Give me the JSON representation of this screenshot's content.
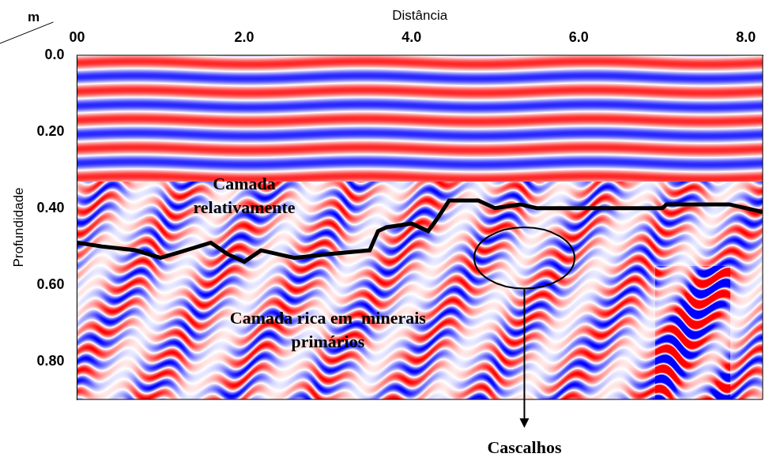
{
  "chart_data": {
    "type": "line",
    "x_label": "Distância",
    "y_label": "Profundidade",
    "x_unit": "m",
    "y_unit": "m",
    "xlim": [
      0,
      8.2
    ],
    "xticks": [
      {
        "value": 0,
        "label": "00"
      },
      {
        "value": 2,
        "label": "2.0"
      },
      {
        "value": 4,
        "label": "4.0"
      },
      {
        "value": 6,
        "label": "6.0"
      },
      {
        "value": 8,
        "label": "8.0"
      }
    ],
    "ylim": [
      0,
      0.9
    ],
    "yticks": [
      {
        "value": 0,
        "label": "0.0"
      },
      {
        "value": 0.2,
        "label": "0.20"
      },
      {
        "value": 0.4,
        "label": "0.40"
      },
      {
        "value": 0.6,
        "label": "0.60"
      },
      {
        "value": 0.8,
        "label": "0.80"
      }
    ],
    "grid": false,
    "series": [
      {
        "color": "#000000",
        "x": [
          0,
          0.3,
          0.7,
          1.0,
          1.3,
          1.6,
          1.8,
          2.0,
          2.2,
          2.4,
          2.6,
          3.0,
          3.5,
          3.6,
          3.7,
          4.0,
          4.2,
          4.3,
          4.45,
          4.8,
          5.0,
          5.3,
          5.5,
          6.0,
          6.5,
          7.0,
          7.05,
          7.5,
          7.8,
          8.2
        ],
        "values": [
          0.49,
          0.5,
          0.51,
          0.53,
          0.51,
          0.49,
          0.52,
          0.54,
          0.51,
          0.52,
          0.53,
          0.52,
          0.51,
          0.46,
          0.45,
          0.44,
          0.46,
          0.43,
          0.38,
          0.38,
          0.4,
          0.39,
          0.4,
          0.4,
          0.4,
          0.4,
          0.39,
          0.39,
          0.39,
          0.41
        ]
      }
    ],
    "annotations": [
      {
        "lines": [
          "Camada",
          "relativamente"
        ],
        "x": 2.0,
        "y": 0.34
      },
      {
        "lines": [
          "Camada rica em  minerais",
          "primários"
        ],
        "x": 3.0,
        "y": 0.69
      }
    ],
    "region": {
      "label": "Cascalhos",
      "x": 5.35,
      "y": 0.53,
      "rx": 0.6,
      "ry": 0.08
    }
  }
}
